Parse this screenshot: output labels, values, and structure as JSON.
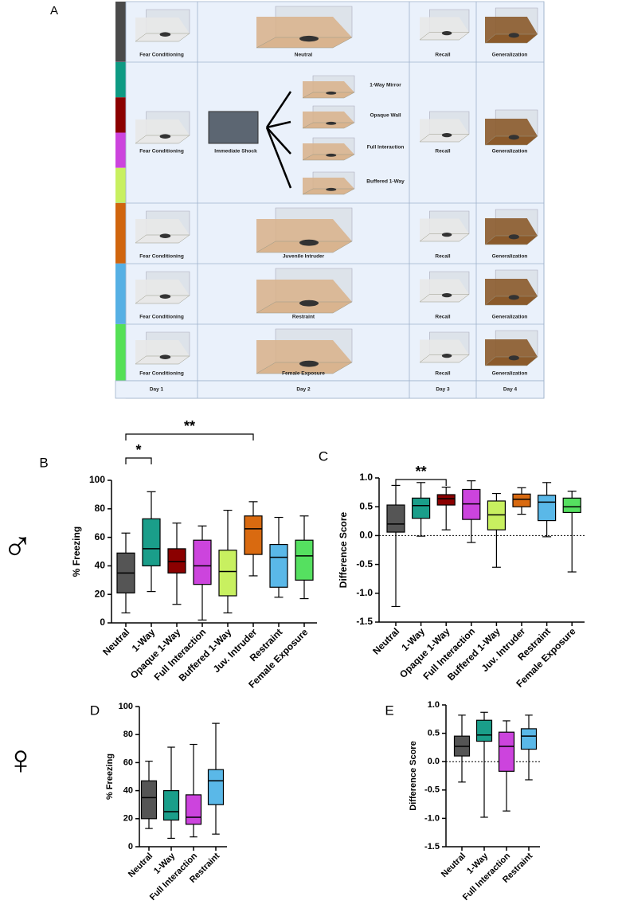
{
  "schematic": {
    "label": "A",
    "rows": [
      {
        "colors": [
          "#4a4a4a"
        ],
        "day1": "Fear Conditioning",
        "day2": "Neutral",
        "day3": "Recall",
        "day4": "Generalization"
      },
      {
        "colors": [
          "#0e9a83",
          "#8b0000",
          "#cc44dd",
          "#c8f060"
        ],
        "day1": "Fear Conditioning",
        "day2": "Immediate Shock",
        "branches": [
          "1-Way Mirror",
          "Opaque Wall",
          "Full Interaction",
          "Buffered 1-Way"
        ],
        "day3": "Recall",
        "day4": "Generalization"
      },
      {
        "colors": [
          "#d0650e"
        ],
        "day1": "Fear Conditioning",
        "day2": "Juvenile Intruder",
        "day3": "Recall",
        "day4": "Generalization"
      },
      {
        "colors": [
          "#56b0e4"
        ],
        "day1": "Fear Conditioning",
        "day2": "Restraint",
        "day3": "Recall",
        "day4": "Generalization"
      },
      {
        "colors": [
          "#55e056"
        ],
        "day1": "Fear Conditioning",
        "day2": "Female Exposure",
        "day3": "Recall",
        "day4": "Generalization"
      }
    ],
    "days": [
      "Day 1",
      "Day 2",
      "Day 3",
      "Day 4"
    ]
  },
  "sex_labels": [
    "♂",
    "♀"
  ],
  "chart_data": [
    {
      "type": "box",
      "panel": "B",
      "ylabel": "% Freezing",
      "categories": [
        "Neutral",
        "1-Way",
        "Opaque 1-Way",
        "Full Interaction",
        "Buffered 1-Way",
        "Juv. Intruder",
        "Restraint",
        "Female Exposure"
      ],
      "boxes": [
        {
          "min": 7,
          "q1": 21,
          "median": 35,
          "q3": 49,
          "max": 63,
          "color": "#555555"
        },
        {
          "min": 22,
          "q1": 40,
          "median": 52,
          "q3": 73,
          "max": 92,
          "color": "#1a9e8a"
        },
        {
          "min": 13,
          "q1": 35,
          "median": 43,
          "q3": 52,
          "max": 70,
          "color": "#8b0000"
        },
        {
          "min": 2,
          "q1": 27,
          "median": 40,
          "q3": 58,
          "max": 68,
          "color": "#cc44dd"
        },
        {
          "min": 7,
          "q1": 19,
          "median": 36,
          "q3": 51,
          "max": 79,
          "color": "#c8f060"
        },
        {
          "min": 33,
          "q1": 48,
          "median": 66,
          "q3": 75,
          "max": 85,
          "color": "#d96a10"
        },
        {
          "min": 18,
          "q1": 25,
          "median": 46,
          "q3": 55,
          "max": 74,
          "color": "#5ab8e8"
        },
        {
          "min": 17,
          "q1": 30,
          "median": 47,
          "q3": 58,
          "max": 75,
          "color": "#55e060"
        }
      ],
      "ylim": [
        0,
        100
      ],
      "yticks": [
        0,
        20,
        40,
        60,
        80,
        100
      ],
      "zero_line": false,
      "annotations": [
        {
          "text": "*",
          "between": [
            0,
            1
          ]
        },
        {
          "text": "**",
          "between": [
            0,
            5
          ]
        }
      ]
    },
    {
      "type": "box",
      "panel": "C",
      "ylabel": "Difference Score",
      "categories": [
        "Neutral",
        "1-Way",
        "Opaque 1-Way",
        "Full Interaction",
        "Buffered 1-Way",
        "Juv. Intruder",
        "Restraint",
        "Female Exposure"
      ],
      "boxes": [
        {
          "min": -1.23,
          "q1": 0.06,
          "median": 0.2,
          "q3": 0.53,
          "max": 0.87,
          "color": "#555555"
        },
        {
          "min": -0.01,
          "q1": 0.3,
          "median": 0.52,
          "q3": 0.65,
          "max": 0.92,
          "color": "#1a9e8a"
        },
        {
          "min": 0.1,
          "q1": 0.53,
          "median": 0.64,
          "q3": 0.71,
          "max": 0.84,
          "color": "#8b0000"
        },
        {
          "min": -0.12,
          "q1": 0.28,
          "median": 0.55,
          "q3": 0.8,
          "max": 0.95,
          "color": "#cc44dd"
        },
        {
          "min": -0.55,
          "q1": 0.1,
          "median": 0.36,
          "q3": 0.6,
          "max": 0.73,
          "color": "#c8f060"
        },
        {
          "min": 0.37,
          "q1": 0.5,
          "median": 0.63,
          "q3": 0.72,
          "max": 0.83,
          "color": "#d96a10"
        },
        {
          "min": -0.02,
          "q1": 0.26,
          "median": 0.58,
          "q3": 0.7,
          "max": 0.92,
          "color": "#5ab8e8"
        },
        {
          "min": -0.63,
          "q1": 0.4,
          "median": 0.5,
          "q3": 0.65,
          "max": 0.77,
          "color": "#55e060"
        }
      ],
      "ylim": [
        -1.5,
        1.0
      ],
      "yticks": [
        -1.5,
        {
          "value": -1,
          "label": "-1.0"
        },
        -0.5,
        {
          "value": 0,
          "label": "0.0"
        },
        0.5,
        {
          "value": 1,
          "label": "1.0"
        }
      ],
      "zero_line": true,
      "annotations": [
        {
          "text": "**",
          "between": [
            0,
            2
          ]
        }
      ]
    },
    {
      "type": "box",
      "panel": "D",
      "ylabel": "% Freezing",
      "categories": [
        "Neutral",
        "1-Way",
        "Full Interaction",
        "Restraint"
      ],
      "boxes": [
        {
          "min": 13,
          "q1": 20,
          "median": 35,
          "q3": 47,
          "max": 61,
          "color": "#555555"
        },
        {
          "min": 6,
          "q1": 19,
          "median": 25,
          "q3": 40,
          "max": 71,
          "color": "#1a9e8a"
        },
        {
          "min": 7,
          "q1": 16,
          "median": 21,
          "q3": 37,
          "max": 73,
          "color": "#cc44dd"
        },
        {
          "min": 9,
          "q1": 30,
          "median": 47,
          "q3": 55,
          "max": 88,
          "color": "#5ab8e8"
        }
      ],
      "ylim": [
        0,
        100
      ],
      "yticks": [
        0,
        20,
        40,
        60,
        80,
        100
      ],
      "zero_line": false,
      "annotations": []
    },
    {
      "type": "box",
      "panel": "E",
      "ylabel": "Difference Score",
      "categories": [
        "Neutral",
        "1-Way",
        "Full Interaction",
        "Restraint"
      ],
      "boxes": [
        {
          "min": -0.36,
          "q1": 0.1,
          "median": 0.27,
          "q3": 0.45,
          "max": 0.82,
          "color": "#555555"
        },
        {
          "min": -0.98,
          "q1": 0.36,
          "median": 0.47,
          "q3": 0.73,
          "max": 0.87,
          "color": "#1a9e8a"
        },
        {
          "min": -0.87,
          "q1": -0.17,
          "median": 0.27,
          "q3": 0.52,
          "max": 0.72,
          "color": "#cc44dd"
        },
        {
          "min": -0.32,
          "q1": 0.22,
          "median": 0.45,
          "q3": 0.58,
          "max": 0.82,
          "color": "#5ab8e8"
        }
      ],
      "ylim": [
        -1.5,
        1.0
      ],
      "yticks": [
        -1.5,
        {
          "value": -1,
          "label": "-1.0"
        },
        -0.5,
        {
          "value": 0,
          "label": "0.0"
        },
        0.5,
        {
          "value": 1,
          "label": "1.0"
        }
      ],
      "zero_line": true,
      "annotations": []
    }
  ]
}
